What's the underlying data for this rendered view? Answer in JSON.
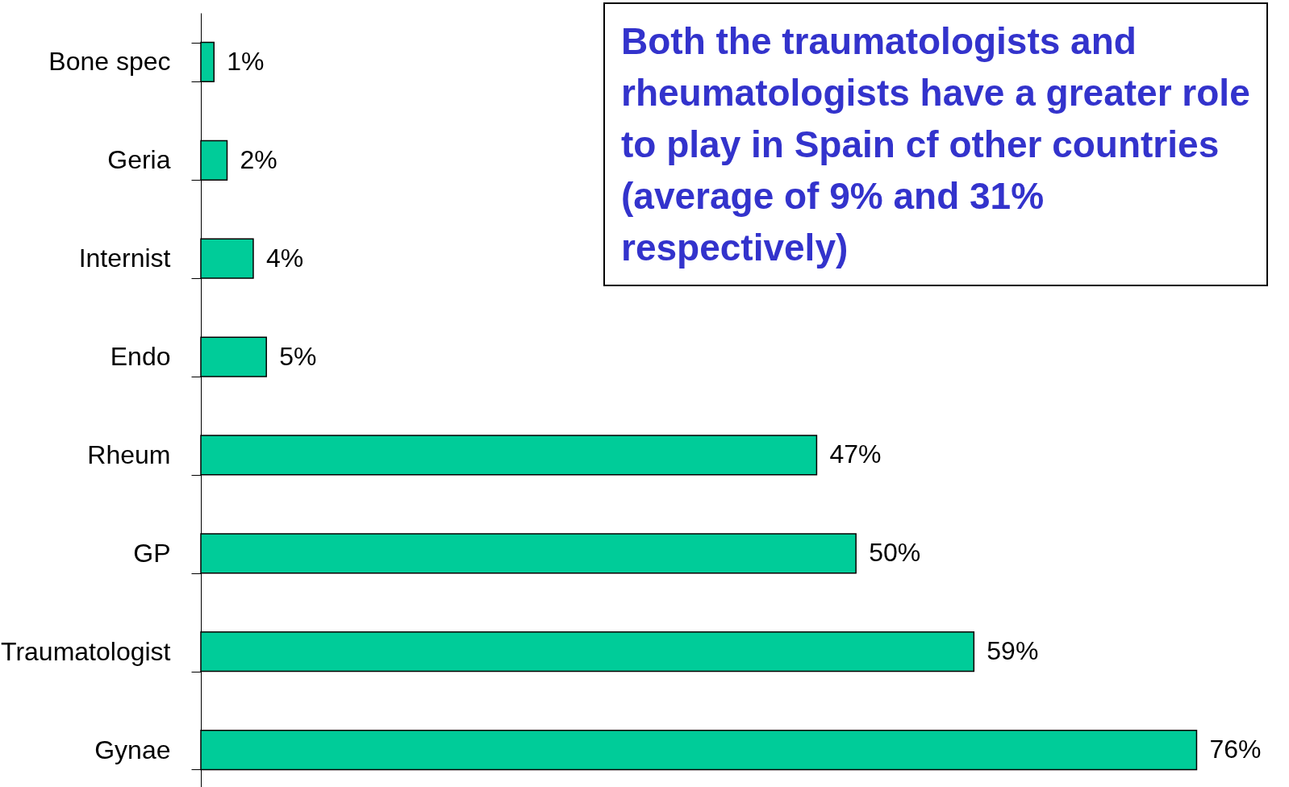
{
  "chart_data": {
    "type": "bar",
    "orientation": "horizontal",
    "categories": [
      "Bone spec",
      "Geria",
      "Internist",
      "Endo",
      "Rheum",
      "GP",
      "Traumatologist",
      "Gynae"
    ],
    "values": [
      1,
      2,
      4,
      5,
      47,
      50,
      59,
      76
    ],
    "value_labels": [
      "1%",
      "2%",
      "4%",
      "5%",
      "47%",
      "50%",
      "59%",
      "76%"
    ],
    "color": "#00cc99",
    "annotations": [
      "Both the traumatologists and rheumatologists have a greater role to play in Spain cf other countries (average of 9% and 31% respectively)"
    ]
  }
}
